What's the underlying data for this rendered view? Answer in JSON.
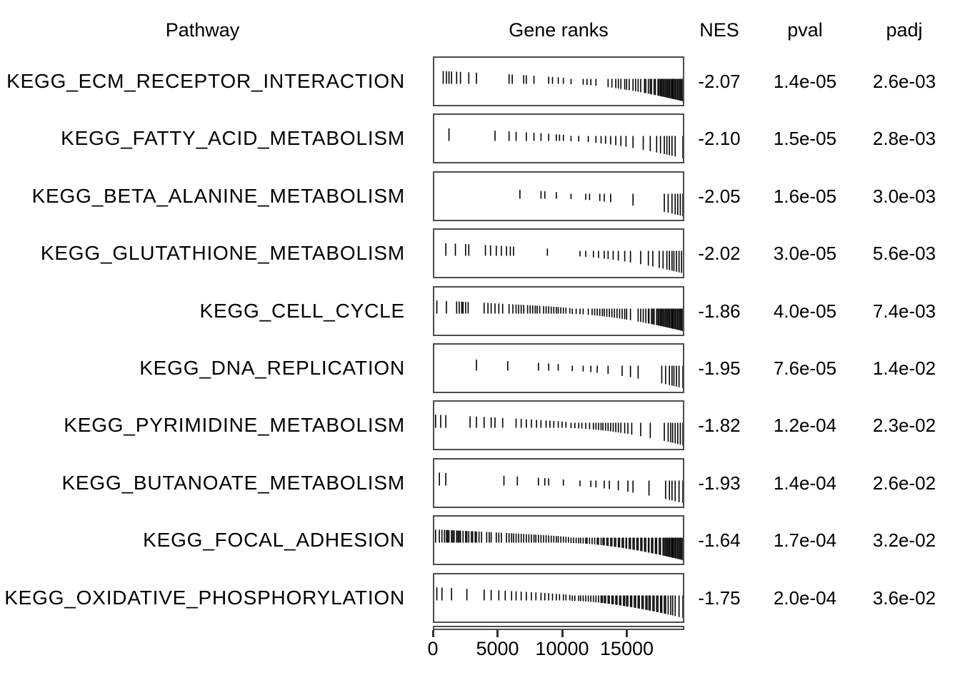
{
  "figure": {
    "kind": "fgsea enrichment table plot",
    "background_color": "#ffffff",
    "text_color": "#000000",
    "box_border_color": "#4d4d4d",
    "tick_color": "#000000"
  },
  "header": {
    "pathway": "Pathway",
    "gene_ranks": "Gene ranks",
    "nes": "NES",
    "pval": "pval",
    "padj": "padj"
  },
  "chart_data": {
    "type": "table",
    "title": "GSEA pathway enrichment table (pathway, gene rank positions, NES, pval, padj)",
    "columns": [
      "Pathway",
      "Gene ranks",
      "NES",
      "pval",
      "padj"
    ],
    "x_axis": {
      "label_ticks": [
        0,
        5000,
        10000,
        15000
      ],
      "range": [
        0,
        19450
      ],
      "grid": false
    },
    "rows": [
      {
        "pathway": "KEGG_ECM_RECEPTOR_INTERACTION",
        "nes": "-2.07",
        "pval": "1.4e-05",
        "padj": "2.6e-03",
        "gene_ranks": [
          700,
          950,
          1150,
          1350,
          1750,
          2050,
          2700,
          3300,
          5850,
          6100,
          7000,
          7200,
          7800,
          8950,
          9250,
          9700,
          10100,
          10700,
          11650,
          11950,
          12250,
          12650,
          13600,
          13900,
          14200,
          14400,
          14600,
          14900,
          15050,
          15250,
          15550,
          15750,
          15950,
          16150,
          16450,
          16550,
          16750,
          16900,
          17000,
          17200,
          17300,
          17500,
          17600,
          17700,
          17800,
          17900,
          18000,
          18100,
          18200,
          18300,
          18400,
          18500,
          18600,
          18650,
          18750,
          18850,
          18950,
          19050,
          19150,
          19250,
          19350,
          19450
        ]
      },
      {
        "pathway": "KEGG_FATTY_ACID_METABOLISM",
        "nes": "-2.10",
        "pval": "1.5e-05",
        "padj": "2.8e-03",
        "gene_ranks": [
          1150,
          4750,
          5850,
          6400,
          7200,
          7800,
          8350,
          8950,
          9550,
          9800,
          10100,
          10700,
          11300,
          12050,
          12650,
          13050,
          13400,
          13800,
          14200,
          14600,
          15000,
          15550,
          16350,
          16900,
          17400,
          17700,
          18000,
          18200,
          18400,
          18600,
          18850,
          19450
        ]
      },
      {
        "pathway": "KEGG_BETA_ALANINE_METABOLISM",
        "nes": "-2.05",
        "pval": "1.6e-05",
        "padj": "3.0e-03",
        "gene_ranks": [
          6700,
          8350,
          8650,
          9550,
          10700,
          11850,
          12150,
          12950,
          13300,
          13800,
          15550,
          18000,
          18300,
          18600,
          18850,
          19050,
          19250,
          19450
        ]
      },
      {
        "pathway": "KEGG_GLUTATHIONE_METABOLISM",
        "nes": "-2.02",
        "pval": "3.0e-05",
        "padj": "5.6e-03",
        "gene_ranks": [
          900,
          1650,
          2450,
          2700,
          4000,
          4400,
          4850,
          5250,
          5650,
          5950,
          6200,
          8850,
          11400,
          11850,
          12450,
          12850,
          13300,
          13600,
          14000,
          14400,
          14900,
          15350,
          16150,
          16750,
          17100,
          17600,
          17900,
          18200,
          18400,
          18600,
          18750,
          18950,
          19150,
          19350
        ]
      },
      {
        "pathway": "KEGG_CELL_CYCLE",
        "nes": "-1.86",
        "pval": "4.0e-05",
        "padj": "7.4e-03",
        "gene_ranks": [
          200,
          950,
          1750,
          1950,
          2150,
          2250,
          2450,
          2650,
          3900,
          4200,
          4450,
          4750,
          5050,
          5350,
          5850,
          6150,
          6400,
          6600,
          6800,
          7000,
          7300,
          7500,
          7700,
          7900,
          8050,
          8250,
          8550,
          8750,
          8950,
          9150,
          9350,
          9550,
          9700,
          9900,
          10100,
          10300,
          10600,
          10800,
          11100,
          11400,
          11650,
          12050,
          12350,
          12550,
          12750,
          12950,
          13150,
          13300,
          13500,
          13700,
          13900,
          14100,
          14300,
          14500,
          14700,
          14900,
          15050,
          15350,
          15950,
          16150,
          16350,
          16550,
          16750,
          16800,
          17000,
          17100,
          17200,
          17400,
          17500,
          17600,
          17700,
          17800,
          17900,
          18000,
          18100,
          18200,
          18300,
          18400,
          18500,
          18600,
          18650,
          18750,
          18850,
          18950,
          19050,
          19150,
          19250,
          19350,
          19450
        ]
      },
      {
        "pathway": "KEGG_DNA_REPLICATION",
        "nes": "-1.95",
        "pval": "7.6e-05",
        "padj": "1.4e-02",
        "gene_ranks": [
          3300,
          5750,
          8150,
          8950,
          9700,
          10800,
          11650,
          12250,
          12750,
          13600,
          14700,
          15350,
          15950,
          17800,
          18100,
          18400,
          18600,
          18750,
          18950,
          19150,
          19450
        ]
      },
      {
        "pathway": "KEGG_PYRIMIDINE_METABOLISM",
        "nes": "-1.82",
        "pval": "1.2e-04",
        "padj": "2.3e-02",
        "gene_ranks": [
          100,
          500,
          900,
          2800,
          3300,
          3900,
          4450,
          4750,
          5350,
          6400,
          6800,
          7200,
          7600,
          8000,
          8350,
          8750,
          9050,
          9350,
          9700,
          10000,
          10300,
          10700,
          11000,
          11300,
          11550,
          11850,
          12150,
          12450,
          12650,
          12850,
          13050,
          13200,
          13400,
          13600,
          13800,
          14000,
          14200,
          14400,
          14600,
          14900,
          15150,
          15450,
          16150,
          16900,
          18000,
          18300,
          18500,
          18650,
          18850,
          19050,
          19250,
          19450
        ]
      },
      {
        "pathway": "KEGG_BUTANOATE_METABOLISM",
        "nes": "-1.93",
        "pval": "1.4e-04",
        "padj": "2.6e-02",
        "gene_ranks": [
          400,
          900,
          5450,
          6500,
          8150,
          8650,
          8950,
          10100,
          11400,
          12250,
          12650,
          13300,
          13700,
          14400,
          15150,
          15550,
          16800,
          18100,
          18400,
          18600,
          18850,
          19150,
          19450
        ]
      },
      {
        "pathway": "KEGG_FOCAL_ADHESION",
        "nes": "-1.64",
        "pval": "1.7e-04",
        "padj": "3.2e-02",
        "gene_ranks": [
          100,
          400,
          600,
          800,
          950,
          1050,
          1150,
          1350,
          1450,
          1550,
          1750,
          1850,
          1950,
          2050,
          2250,
          2450,
          2550,
          2700,
          2900,
          3000,
          3200,
          3300,
          3500,
          3700,
          4100,
          4300,
          4450,
          4850,
          5050,
          5250,
          5650,
          5850,
          6050,
          6200,
          6400,
          6600,
          6800,
          7000,
          7200,
          7400,
          7600,
          7800,
          7950,
          8150,
          8350,
          8550,
          8750,
          8950,
          9150,
          9350,
          9550,
          9700,
          9900,
          10100,
          10300,
          10500,
          10700,
          10900,
          11100,
          11300,
          11450,
          11650,
          11850,
          11950,
          12150,
          12350,
          12550,
          12750,
          12850,
          13050,
          13200,
          13300,
          13500,
          13600,
          13800,
          13900,
          14100,
          14200,
          14400,
          14500,
          14700,
          14800,
          15000,
          15050,
          15250,
          15350,
          15550,
          15650,
          15850,
          15950,
          16150,
          16250,
          16450,
          16550,
          16750,
          16800,
          17000,
          17100,
          17300,
          17400,
          17600,
          17700,
          17900,
          18000,
          18100,
          18200,
          18300,
          18400,
          18500,
          18600,
          18650,
          18750,
          18850,
          18950,
          19050,
          19150,
          19250,
          19350,
          19450
        ]
      },
      {
        "pathway": "KEGG_OXIDATIVE_PHOSPHORYLATION",
        "nes": "-1.75",
        "pval": "2.0e-04",
        "padj": "3.6e-02",
        "gene_ranks": [
          200,
          600,
          1350,
          2550,
          3900,
          4450,
          5050,
          5550,
          6050,
          6400,
          6800,
          7200,
          7600,
          7950,
          8350,
          8650,
          8950,
          9250,
          9550,
          9800,
          10100,
          10300,
          10600,
          10800,
          11000,
          11300,
          11450,
          11650,
          11850,
          12050,
          12250,
          12450,
          12650,
          12850,
          13050,
          13150,
          13300,
          13400,
          13600,
          13700,
          13900,
          14000,
          14200,
          14300,
          14500,
          14600,
          14800,
          14900,
          15050,
          15150,
          15350,
          15450,
          15650,
          15750,
          15950,
          16050,
          16250,
          16350,
          16550,
          16650,
          16800,
          16900,
          17100,
          17200,
          17400,
          17500,
          17700,
          17800,
          18000,
          18100,
          18300,
          18500,
          18650,
          18850,
          19150,
          19450
        ]
      }
    ]
  }
}
